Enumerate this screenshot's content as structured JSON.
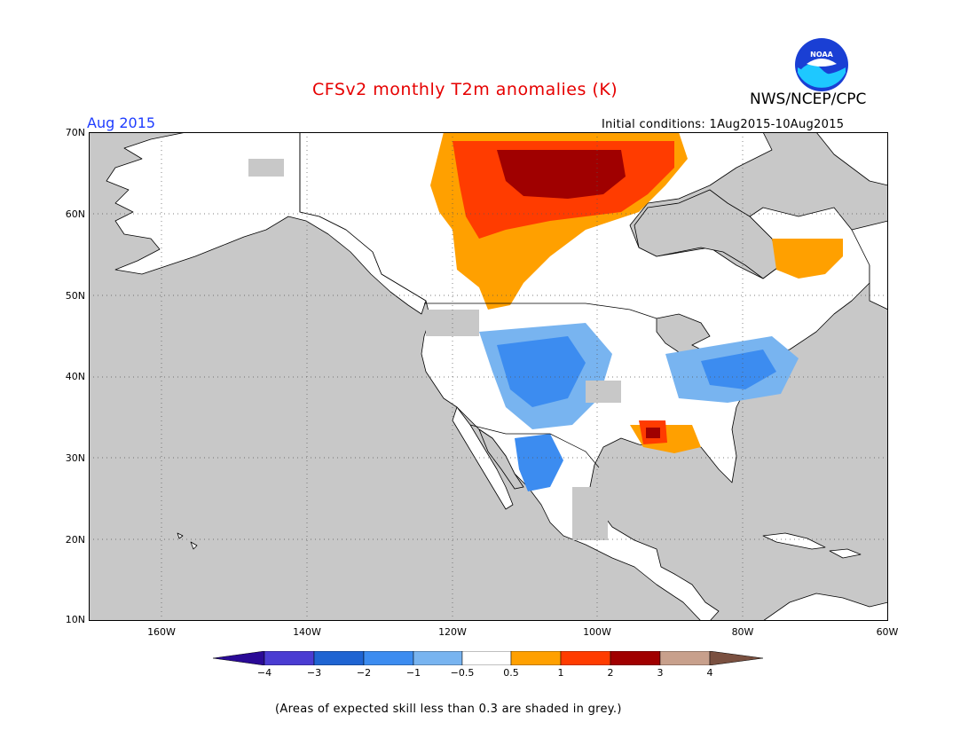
{
  "title": "CFSv2 monthly T2m anomalies (K)",
  "organization": "NWS/NCEP/CPC",
  "logo_text": "NOAA",
  "forecast_month": "Aug 2015",
  "initial_conditions": "Initial conditions: 1Aug2015-10Aug2015",
  "latitude_labels": [
    "70N",
    "60N",
    "50N",
    "40N",
    "30N",
    "20N",
    "10N"
  ],
  "longitude_labels": [
    "160W",
    "140W",
    "120W",
    "100W",
    "80W",
    "60W"
  ],
  "colorbar": {
    "labels": [
      "−4",
      "−3",
      "−2",
      "−1",
      "−0.5",
      "0.5",
      "1",
      "2",
      "3",
      "4"
    ],
    "colors": [
      "#2a0a96",
      "#4a3cd2",
      "#1f64d2",
      "#3c8cf0",
      "#78b4f0",
      "#ffffff",
      "#ffa000",
      "#ff3c00",
      "#a00000",
      "#c8a08c",
      "#7a5040"
    ]
  },
  "skill_note": "(Areas of expected skill less than 0.3 are shaded in grey.)",
  "map": {
    "extent": {
      "lon_min": -170,
      "lon_max": -60,
      "lat_min": 10,
      "lat_max": 70
    },
    "ocean_color": "#c8c8c8",
    "land_color": "#ffffff",
    "regions": [
      {
        "id": "warm-canada-core",
        "category": "+2 to +3",
        "color": "#a00000"
      },
      {
        "id": "warm-canada",
        "category": "+1 to +2",
        "color": "#ff3c00"
      },
      {
        "id": "warm-canada-outer",
        "category": "+0.5 to +1",
        "color": "#ffa000"
      },
      {
        "id": "warm-quebec",
        "category": "+0.5 to +1",
        "color": "#ffa000"
      },
      {
        "id": "warm-gulf-coast",
        "category": "+2 to +3",
        "color": "#a00000"
      },
      {
        "id": "cool-rockies",
        "category": "-0.5 to -1",
        "color": "#78b4f0"
      },
      {
        "id": "cool-east",
        "category": "-1 to -2",
        "color": "#3c8cf0"
      },
      {
        "id": "cool-mexico",
        "category": "-1 to -2",
        "color": "#3c8cf0"
      }
    ]
  }
}
